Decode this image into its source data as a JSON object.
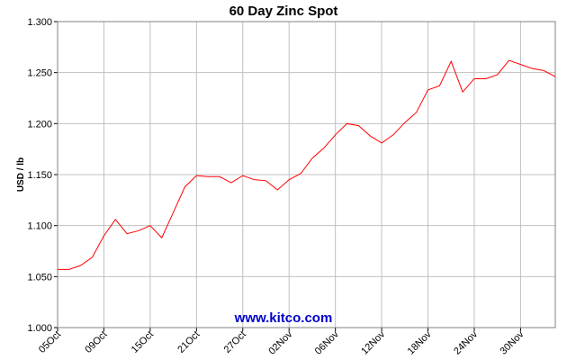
{
  "chart_data": {
    "type": "line",
    "title": "60 Day Zinc Spot",
    "y_label": "USD / lb",
    "annotation": "www.kitco.com",
    "categories": [
      "05Oct",
      null,
      null,
      null,
      "09Oct",
      null,
      null,
      null,
      "15Oct",
      null,
      null,
      null,
      "21Oct",
      null,
      null,
      null,
      "27Oct",
      null,
      null,
      null,
      "02Nov",
      null,
      null,
      null,
      "06Nov",
      null,
      null,
      null,
      "12Nov",
      null,
      null,
      null,
      "18Nov",
      null,
      null,
      null,
      "24Nov",
      null,
      null,
      null,
      "30Nov",
      null,
      null,
      null
    ],
    "values": [
      1.057,
      1.057,
      1.061,
      1.069,
      1.09,
      1.106,
      1.092,
      1.095,
      1.1,
      1.088,
      1.113,
      1.138,
      1.149,
      1.148,
      1.148,
      1.142,
      1.149,
      1.145,
      1.144,
      1.135,
      1.145,
      1.151,
      1.166,
      1.176,
      1.189,
      1.2,
      1.198,
      1.188,
      1.181,
      1.189,
      1.201,
      1.211,
      1.233,
      1.237,
      1.261,
      1.231,
      1.244,
      1.244,
      1.248,
      1.262,
      1.258,
      1.254,
      1.252,
      1.246
    ],
    "color": "#ff0000",
    "ylim": [
      1.0,
      1.3
    ],
    "yticks": [
      {
        "value": 1.0,
        "label": "1.000"
      },
      {
        "value": 1.05,
        "label": "1.050"
      },
      {
        "value": 1.1,
        "label": "1.100"
      },
      {
        "value": 1.15,
        "label": "1.150"
      },
      {
        "value": 1.2,
        "label": "1.200"
      },
      {
        "value": 1.25,
        "label": "1.250"
      },
      {
        "value": 1.3,
        "label": "1.300"
      }
    ],
    "grid": true
  }
}
